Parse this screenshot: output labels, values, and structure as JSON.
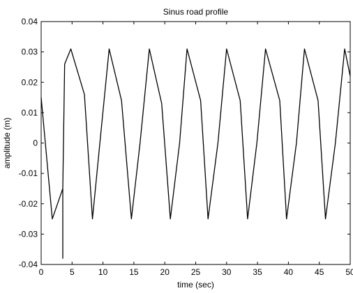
{
  "chart_data": {
    "type": "line",
    "title": "Sinus road profile",
    "xlabel": "time (sec)",
    "ylabel": "amplitude (m)",
    "xlim": [
      0,
      50
    ],
    "ylim": [
      -0.04,
      0.04
    ],
    "grid": false,
    "x_ticks": [
      0,
      5,
      10,
      15,
      20,
      25,
      30,
      35,
      40,
      45,
      50
    ],
    "x_tick_labels": [
      "0",
      "5",
      "10",
      "15",
      "20",
      "25",
      "30",
      "35",
      "40",
      "45",
      "50"
    ],
    "y_ticks": [
      -0.04,
      -0.03,
      -0.02,
      -0.01,
      0,
      0.01,
      0.02,
      0.03,
      0.04
    ],
    "y_tick_labels": [
      "-0.04",
      "-0.03",
      "-0.02",
      "-0.01",
      "0",
      "0.01",
      "0.02",
      "0.03",
      "0.04"
    ],
    "series": [
      {
        "color": "#000000",
        "x": [
          0,
          1.8,
          3.5,
          3.5,
          3.5,
          3.8,
          4.8,
          7.0,
          8.3,
          9.5,
          11.0,
          13.0,
          14.6,
          16.0,
          17.5,
          19.5,
          20.9,
          22.4,
          23.6,
          25.8,
          27.0,
          28.6,
          30.0,
          32.2,
          33.4,
          34.9,
          36.3,
          38.6,
          39.7,
          41.3,
          42.6,
          44.8,
          46.0,
          47.6,
          49.1,
          50.0
        ],
        "y": [
          0.015,
          -0.025,
          -0.015,
          -0.038,
          -0.015,
          0.026,
          0.031,
          0.016,
          -0.025,
          0.0,
          0.031,
          0.014,
          -0.025,
          0.0,
          0.031,
          0.013,
          -0.025,
          0.0,
          0.031,
          0.014,
          -0.025,
          0.0,
          0.031,
          0.014,
          -0.025,
          0.0,
          0.031,
          0.014,
          -0.025,
          0.0,
          0.031,
          0.014,
          -0.025,
          0.0,
          0.031,
          0.022
        ]
      }
    ]
  }
}
